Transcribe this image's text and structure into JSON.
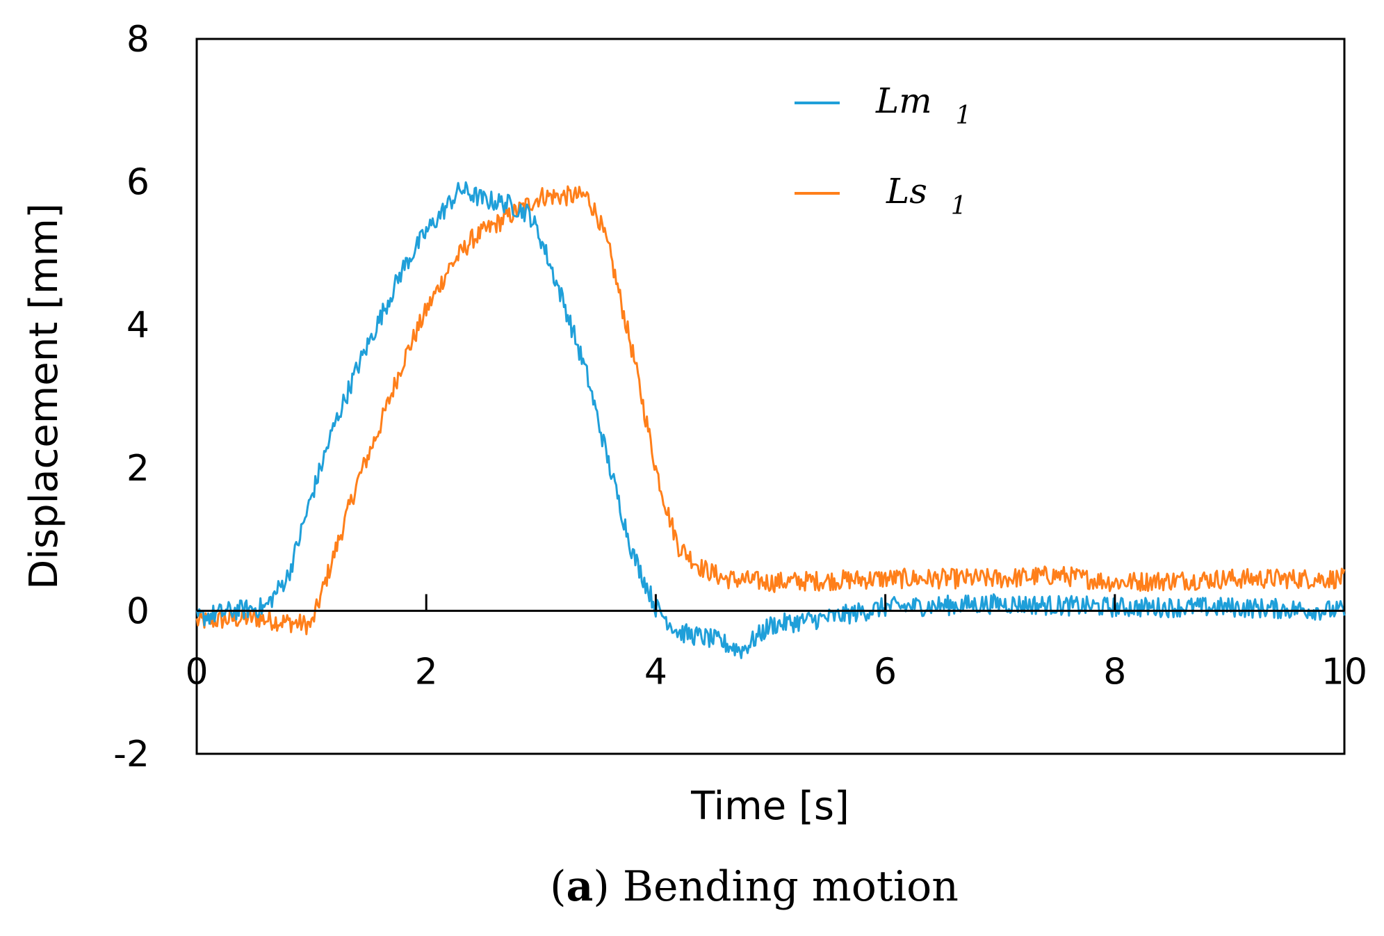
{
  "chart_data": {
    "type": "line",
    "caption_letter": "a",
    "caption_text": "Bending motion",
    "xlabel": "Time [s]",
    "ylabel": "Displacement [mm]",
    "xlim": [
      0,
      10
    ],
    "ylim": [
      -2,
      8
    ],
    "xticks": [
      0,
      2,
      4,
      6,
      8,
      10
    ],
    "yticks": [
      -2,
      0,
      2,
      4,
      6,
      8
    ],
    "grid": false,
    "legend_position": "top-right",
    "series": [
      {
        "name": "Lm",
        "name_sub": "1",
        "color": "#1f9fd9",
        "x": [
          0,
          0.3,
          0.6,
          0.8,
          1.0,
          1.2,
          1.4,
          1.6,
          1.8,
          2.0,
          2.2,
          2.3,
          2.5,
          2.7,
          2.9,
          3.0,
          3.2,
          3.4,
          3.6,
          3.8,
          4.0,
          4.2,
          4.5,
          4.75,
          5.0,
          5.5,
          6.0,
          7.0,
          8.0,
          9.0,
          10.0
        ],
        "y": [
          -0.1,
          0.0,
          0.05,
          0.5,
          1.6,
          2.6,
          3.4,
          4.1,
          4.8,
          5.3,
          5.7,
          5.9,
          5.75,
          5.7,
          5.55,
          5.2,
          4.3,
          3.3,
          2.0,
          0.8,
          0.05,
          -0.3,
          -0.4,
          -0.55,
          -0.2,
          -0.1,
          0.05,
          0.1,
          0.05,
          0.05,
          0.0
        ]
      },
      {
        "name": "Ls",
        "name_sub": "1",
        "color": "#ff7f1a",
        "x": [
          0,
          0.5,
          1.0,
          1.05,
          1.2,
          1.4,
          1.6,
          1.8,
          2.0,
          2.2,
          2.4,
          2.6,
          2.8,
          3.0,
          3.2,
          3.4,
          3.5,
          3.6,
          3.7,
          3.8,
          3.9,
          4.0,
          4.1,
          4.2,
          4.4,
          4.6,
          5.0,
          6.0,
          7.0,
          7.5,
          8.0,
          9.0,
          10.0
        ],
        "y": [
          -0.15,
          -0.1,
          -0.2,
          0.05,
          0.8,
          1.8,
          2.6,
          3.5,
          4.2,
          4.8,
          5.2,
          5.4,
          5.6,
          5.8,
          5.8,
          5.8,
          5.5,
          5.0,
          4.3,
          3.6,
          2.8,
          2.0,
          1.4,
          0.9,
          0.6,
          0.45,
          0.4,
          0.45,
          0.45,
          0.5,
          0.4,
          0.45,
          0.45
        ]
      }
    ]
  }
}
